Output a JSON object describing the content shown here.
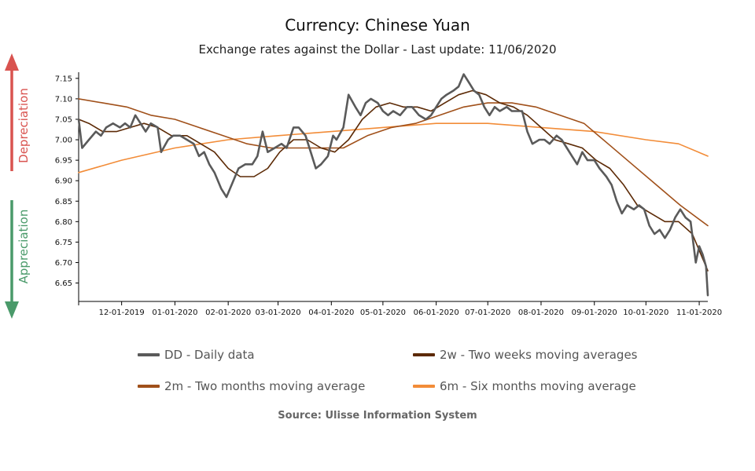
{
  "header": {
    "title": "Currency: Chinese Yuan",
    "subtitle": "Exchange rates against the Dollar - Last update: 11/06/2020"
  },
  "side_labels": {
    "upper": "Depreciation",
    "lower": "Appreciation",
    "upper_color": "#d9534f",
    "lower_color": "#4a9a6a"
  },
  "source": "Source: Ulisse Information System",
  "legend": [
    {
      "key": "dd",
      "label": "DD - Daily data",
      "color": "#5a5a5a"
    },
    {
      "key": "2w",
      "label": "2w - Two weeks moving averages",
      "color": "#5c2a06"
    },
    {
      "key": "2m",
      "label": "2m - Two months moving average",
      "color": "#a0501a"
    },
    {
      "key": "6m",
      "label": "6m - Six months moving average",
      "color": "#f28c38"
    }
  ],
  "chart_data": {
    "type": "line",
    "title": "Currency: Chinese Yuan",
    "subtitle": "Exchange rates against the Dollar - Last update: 11/06/2020",
    "xlabel": "",
    "ylabel": "",
    "x_ticks": [
      "12-01-2019",
      "01-01-2020",
      "02-01-2020",
      "03-01-2020",
      "04-01-2020",
      "05-01-2020",
      "06-01-2020",
      "07-01-2020",
      "08-01-2020",
      "09-01-2020",
      "10-01-2020",
      "11-01-2020"
    ],
    "y_ticks": [
      "6.65",
      "6.70",
      "6.75",
      "6.80",
      "6.85",
      "6.90",
      "6.95",
      "7.00",
      "7.05",
      "7.10",
      "7.15"
    ],
    "ylim": [
      6.605,
      7.165
    ],
    "xlim": [
      "2019-11-06",
      "2020-11-06"
    ],
    "grid": false,
    "legend_position": "bottom",
    "series": [
      {
        "name": "DD - Daily data",
        "color": "#5a5a5a",
        "width": 2.6,
        "points": [
          [
            "2019-11-06",
            7.05
          ],
          [
            "2019-11-08",
            6.98
          ],
          [
            "2019-11-12",
            7.0
          ],
          [
            "2019-11-16",
            7.02
          ],
          [
            "2019-11-19",
            7.01
          ],
          [
            "2019-11-22",
            7.03
          ],
          [
            "2019-11-26",
            7.04
          ],
          [
            "2019-11-30",
            7.03
          ],
          [
            "2019-12-03",
            7.04
          ],
          [
            "2019-12-06",
            7.03
          ],
          [
            "2019-12-09",
            7.06
          ],
          [
            "2019-12-12",
            7.04
          ],
          [
            "2019-12-15",
            7.02
          ],
          [
            "2019-12-18",
            7.04
          ],
          [
            "2019-12-22",
            7.03
          ],
          [
            "2019-12-24",
            6.97
          ],
          [
            "2019-12-28",
            7.0
          ],
          [
            "2019-12-31",
            7.01
          ],
          [
            "2020-01-04",
            7.01
          ],
          [
            "2020-01-08",
            7.0
          ],
          [
            "2020-01-12",
            6.99
          ],
          [
            "2020-01-15",
            6.96
          ],
          [
            "2020-01-18",
            6.97
          ],
          [
            "2020-01-21",
            6.94
          ],
          [
            "2020-01-24",
            6.92
          ],
          [
            "2020-01-28",
            6.88
          ],
          [
            "2020-01-31",
            6.86
          ],
          [
            "2020-02-04",
            6.9
          ],
          [
            "2020-02-07",
            6.93
          ],
          [
            "2020-02-11",
            6.94
          ],
          [
            "2020-02-15",
            6.94
          ],
          [
            "2020-02-18",
            6.96
          ],
          [
            "2020-02-21",
            7.02
          ],
          [
            "2020-02-24",
            6.97
          ],
          [
            "2020-02-28",
            6.98
          ],
          [
            "2020-03-03",
            6.99
          ],
          [
            "2020-03-06",
            6.98
          ],
          [
            "2020-03-10",
            7.03
          ],
          [
            "2020-03-13",
            7.03
          ],
          [
            "2020-03-17",
            7.01
          ],
          [
            "2020-03-20",
            6.97
          ],
          [
            "2020-03-23",
            6.93
          ],
          [
            "2020-03-26",
            6.94
          ],
          [
            "2020-03-30",
            6.96
          ],
          [
            "2020-04-02",
            7.01
          ],
          [
            "2020-04-04",
            7.0
          ],
          [
            "2020-04-08",
            7.03
          ],
          [
            "2020-04-11",
            7.11
          ],
          [
            "2020-04-15",
            7.08
          ],
          [
            "2020-04-18",
            7.06
          ],
          [
            "2020-04-21",
            7.09
          ],
          [
            "2020-04-24",
            7.1
          ],
          [
            "2020-04-28",
            7.09
          ],
          [
            "2020-05-01",
            7.07
          ],
          [
            "2020-05-04",
            7.06
          ],
          [
            "2020-05-07",
            7.07
          ],
          [
            "2020-05-11",
            7.06
          ],
          [
            "2020-05-15",
            7.08
          ],
          [
            "2020-05-18",
            7.08
          ],
          [
            "2020-05-22",
            7.06
          ],
          [
            "2020-05-26",
            7.05
          ],
          [
            "2020-05-29",
            7.06
          ],
          [
            "2020-06-01",
            7.08
          ],
          [
            "2020-06-04",
            7.1
          ],
          [
            "2020-06-07",
            7.11
          ],
          [
            "2020-06-11",
            7.12
          ],
          [
            "2020-06-14",
            7.13
          ],
          [
            "2020-06-17",
            7.16
          ],
          [
            "2020-06-20",
            7.14
          ],
          [
            "2020-06-23",
            7.12
          ],
          [
            "2020-06-26",
            7.11
          ],
          [
            "2020-06-29",
            7.08
          ],
          [
            "2020-07-02",
            7.06
          ],
          [
            "2020-07-05",
            7.08
          ],
          [
            "2020-07-08",
            7.07
          ],
          [
            "2020-07-12",
            7.08
          ],
          [
            "2020-07-15",
            7.07
          ],
          [
            "2020-07-18",
            7.07
          ],
          [
            "2020-07-21",
            7.07
          ],
          [
            "2020-07-24",
            7.02
          ],
          [
            "2020-07-27",
            6.99
          ],
          [
            "2020-07-31",
            7.0
          ],
          [
            "2020-08-03",
            7.0
          ],
          [
            "2020-08-06",
            6.99
          ],
          [
            "2020-08-10",
            7.01
          ],
          [
            "2020-08-13",
            7.0
          ],
          [
            "2020-08-16",
            6.98
          ],
          [
            "2020-08-19",
            6.96
          ],
          [
            "2020-08-22",
            6.94
          ],
          [
            "2020-08-25",
            6.97
          ],
          [
            "2020-08-28",
            6.95
          ],
          [
            "2020-09-01",
            6.95
          ],
          [
            "2020-09-04",
            6.93
          ],
          [
            "2020-09-08",
            6.91
          ],
          [
            "2020-09-11",
            6.89
          ],
          [
            "2020-09-14",
            6.85
          ],
          [
            "2020-09-17",
            6.82
          ],
          [
            "2020-09-20",
            6.84
          ],
          [
            "2020-09-24",
            6.83
          ],
          [
            "2020-09-27",
            6.84
          ],
          [
            "2020-09-30",
            6.83
          ],
          [
            "2020-10-03",
            6.79
          ],
          [
            "2020-10-06",
            6.77
          ],
          [
            "2020-10-09",
            6.78
          ],
          [
            "2020-10-12",
            6.76
          ],
          [
            "2020-10-15",
            6.78
          ],
          [
            "2020-10-18",
            6.81
          ],
          [
            "2020-10-21",
            6.83
          ],
          [
            "2020-10-24",
            6.81
          ],
          [
            "2020-10-27",
            6.8
          ],
          [
            "2020-10-30",
            6.7
          ],
          [
            "2020-11-01",
            6.74
          ],
          [
            "2020-11-03",
            6.72
          ],
          [
            "2020-11-05",
            6.69
          ],
          [
            "2020-11-06",
            6.62
          ]
        ]
      },
      {
        "name": "2w - Two weeks moving averages",
        "color": "#5c2a06",
        "width": 1.6,
        "points": [
          [
            "2019-11-06",
            7.05
          ],
          [
            "2019-11-12",
            7.04
          ],
          [
            "2019-11-20",
            7.02
          ],
          [
            "2019-11-28",
            7.02
          ],
          [
            "2019-12-06",
            7.03
          ],
          [
            "2019-12-14",
            7.04
          ],
          [
            "2019-12-22",
            7.03
          ],
          [
            "2019-12-30",
            7.01
          ],
          [
            "2020-01-08",
            7.01
          ],
          [
            "2020-01-16",
            6.99
          ],
          [
            "2020-01-24",
            6.97
          ],
          [
            "2020-02-01",
            6.93
          ],
          [
            "2020-02-08",
            6.91
          ],
          [
            "2020-02-16",
            6.91
          ],
          [
            "2020-02-24",
            6.93
          ],
          [
            "2020-03-02",
            6.97
          ],
          [
            "2020-03-10",
            7.0
          ],
          [
            "2020-03-18",
            7.0
          ],
          [
            "2020-03-26",
            6.98
          ],
          [
            "2020-04-03",
            6.97
          ],
          [
            "2020-04-11",
            7.0
          ],
          [
            "2020-04-19",
            7.05
          ],
          [
            "2020-04-27",
            7.08
          ],
          [
            "2020-05-05",
            7.09
          ],
          [
            "2020-05-13",
            7.08
          ],
          [
            "2020-05-21",
            7.08
          ],
          [
            "2020-05-29",
            7.07
          ],
          [
            "2020-06-06",
            7.09
          ],
          [
            "2020-06-14",
            7.11
          ],
          [
            "2020-06-22",
            7.12
          ],
          [
            "2020-06-30",
            7.11
          ],
          [
            "2020-07-08",
            7.09
          ],
          [
            "2020-07-16",
            7.08
          ],
          [
            "2020-07-24",
            7.06
          ],
          [
            "2020-08-01",
            7.03
          ],
          [
            "2020-08-09",
            7.0
          ],
          [
            "2020-08-17",
            6.99
          ],
          [
            "2020-08-25",
            6.98
          ],
          [
            "2020-09-02",
            6.95
          ],
          [
            "2020-09-10",
            6.93
          ],
          [
            "2020-09-18",
            6.89
          ],
          [
            "2020-09-26",
            6.84
          ],
          [
            "2020-10-04",
            6.82
          ],
          [
            "2020-10-12",
            6.8
          ],
          [
            "2020-10-20",
            6.8
          ],
          [
            "2020-10-28",
            6.77
          ],
          [
            "2020-11-03",
            6.71
          ],
          [
            "2020-11-06",
            6.68
          ]
        ]
      },
      {
        "name": "2m - Two months moving average",
        "color": "#a0501a",
        "width": 1.6,
        "points": [
          [
            "2019-11-06",
            7.1
          ],
          [
            "2019-11-20",
            7.09
          ],
          [
            "2019-12-04",
            7.08
          ],
          [
            "2019-12-18",
            7.06
          ],
          [
            "2020-01-01",
            7.05
          ],
          [
            "2020-01-15",
            7.03
          ],
          [
            "2020-01-29",
            7.01
          ],
          [
            "2020-02-12",
            6.99
          ],
          [
            "2020-02-26",
            6.98
          ],
          [
            "2020-03-11",
            6.98
          ],
          [
            "2020-03-25",
            6.98
          ],
          [
            "2020-04-08",
            6.98
          ],
          [
            "2020-04-22",
            7.01
          ],
          [
            "2020-05-06",
            7.03
          ],
          [
            "2020-05-20",
            7.04
          ],
          [
            "2020-06-03",
            7.06
          ],
          [
            "2020-06-17",
            7.08
          ],
          [
            "2020-07-01",
            7.09
          ],
          [
            "2020-07-15",
            7.09
          ],
          [
            "2020-07-29",
            7.08
          ],
          [
            "2020-08-12",
            7.06
          ],
          [
            "2020-08-26",
            7.04
          ],
          [
            "2020-09-09",
            6.99
          ],
          [
            "2020-09-23",
            6.94
          ],
          [
            "2020-10-07",
            6.89
          ],
          [
            "2020-10-21",
            6.84
          ],
          [
            "2020-11-06",
            6.79
          ]
        ]
      },
      {
        "name": "6m - Six months moving average",
        "color": "#f28c38",
        "width": 1.6,
        "points": [
          [
            "2019-11-06",
            6.92
          ],
          [
            "2019-12-01",
            6.95
          ],
          [
            "2020-01-01",
            6.98
          ],
          [
            "2020-02-01",
            7.0
          ],
          [
            "2020-03-01",
            7.01
          ],
          [
            "2020-04-01",
            7.02
          ],
          [
            "2020-05-01",
            7.03
          ],
          [
            "2020-06-01",
            7.04
          ],
          [
            "2020-07-01",
            7.04
          ],
          [
            "2020-08-01",
            7.03
          ],
          [
            "2020-09-01",
            7.02
          ],
          [
            "2020-10-01",
            7.0
          ],
          [
            "2020-10-20",
            6.99
          ],
          [
            "2020-11-06",
            6.96
          ]
        ]
      }
    ]
  }
}
